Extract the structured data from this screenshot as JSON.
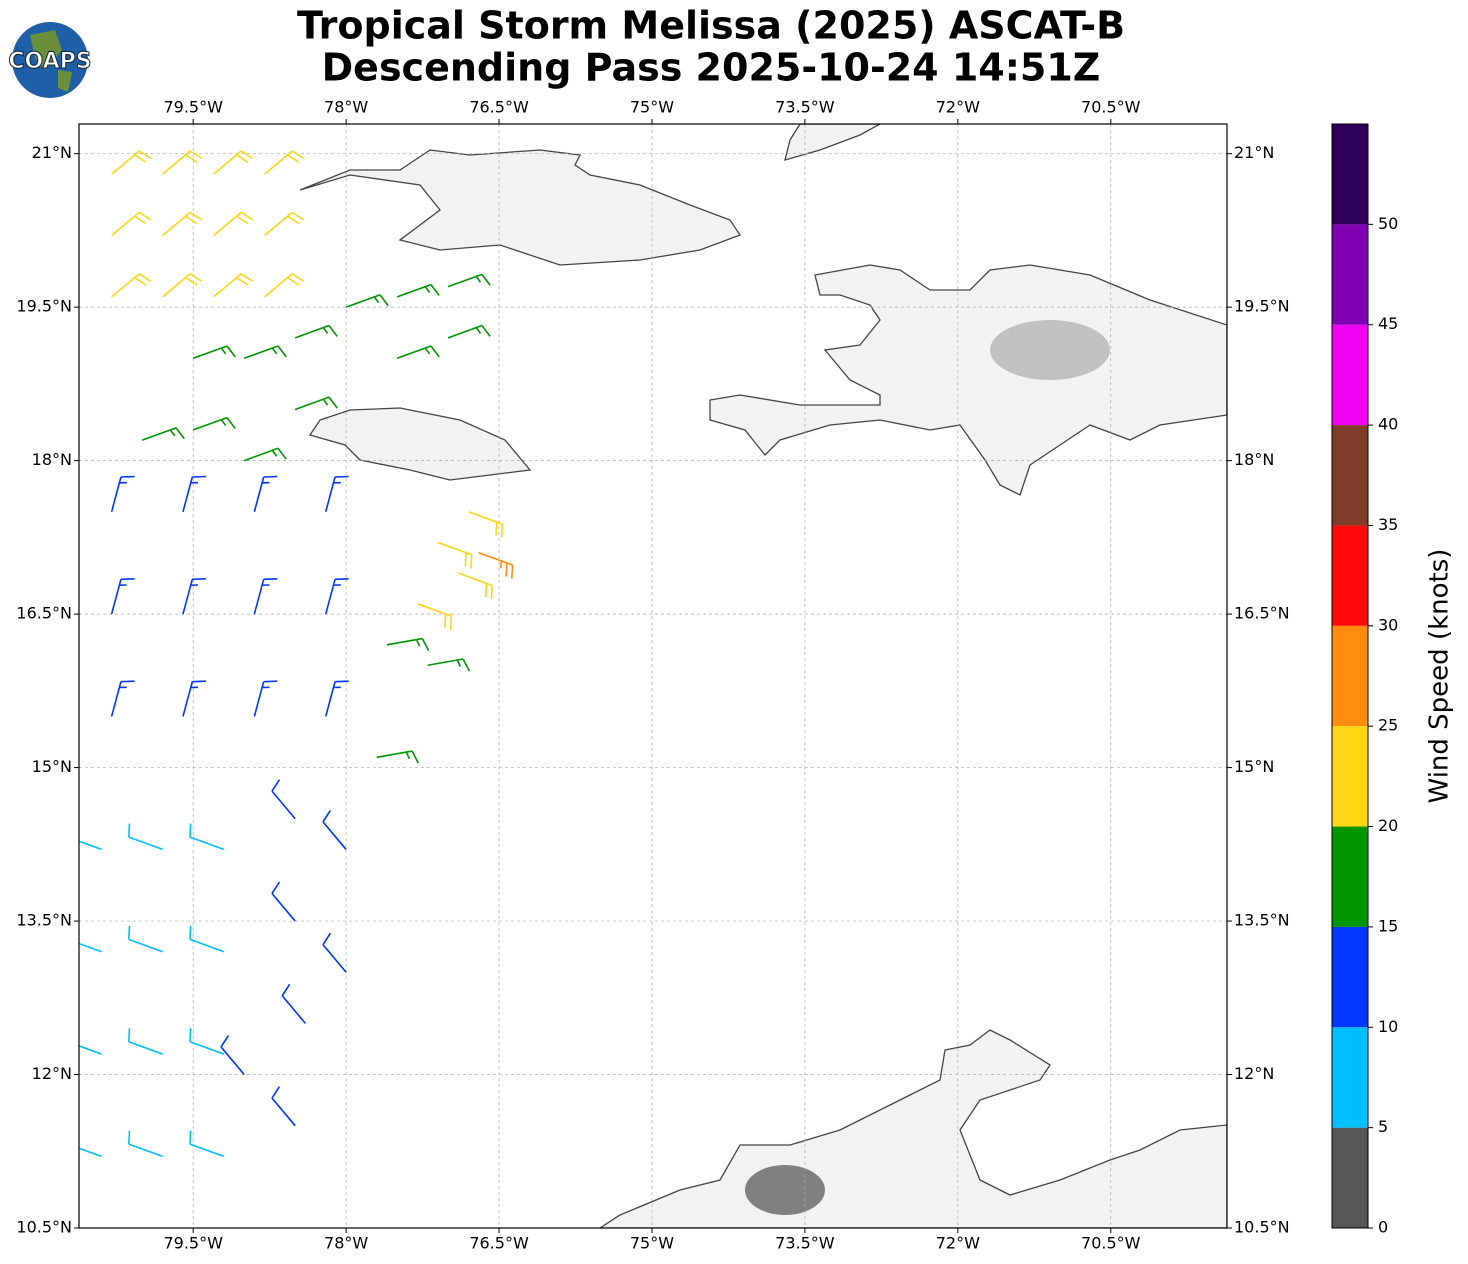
{
  "title": [
    "Tropical Storm Melissa (2025) ASCAT-B",
    "Descending Pass 2025-10-24 14:51Z"
  ],
  "logo": "COAPS",
  "map": {
    "lonlim": [
      -80.62,
      -69.36
    ],
    "latlim": [
      10.5,
      21.29
    ],
    "lonticks": [
      {
        "value": -79.5,
        "label": "79.5°W"
      },
      {
        "value": -78,
        "label": "78°W"
      },
      {
        "value": -76.5,
        "label": "76.5°W"
      },
      {
        "value": -75,
        "label": "75°W"
      },
      {
        "value": -73.5,
        "label": "73.5°W"
      },
      {
        "value": -72,
        "label": "72°W"
      },
      {
        "value": -70.5,
        "label": "70.5°W"
      }
    ],
    "latticks": [
      {
        "value": 21,
        "label": "21°N"
      },
      {
        "value": 19.5,
        "label": "19.5°N"
      },
      {
        "value": 18,
        "label": "18°N"
      },
      {
        "value": 16.5,
        "label": "16.5°N"
      },
      {
        "value": 15,
        "label": "15°N"
      },
      {
        "value": 13.5,
        "label": "13.5°N"
      },
      {
        "value": 12,
        "label": "12°N"
      },
      {
        "value": 10.5,
        "label": "10.5°N"
      }
    ],
    "grid": true,
    "barbs": [
      [
        -80.3,
        20.8,
        22,
        50
      ],
      [
        -79.8,
        20.8,
        22,
        50
      ],
      [
        -79.3,
        20.8,
        22,
        50
      ],
      [
        -78.8,
        20.8,
        22,
        50
      ],
      [
        -80.3,
        20.2,
        22,
        50
      ],
      [
        -79.8,
        20.2,
        22,
        50
      ],
      [
        -79.3,
        20.2,
        22,
        50
      ],
      [
        -78.8,
        20.2,
        22,
        50
      ],
      [
        -80.3,
        19.6,
        22,
        50
      ],
      [
        -79.8,
        19.6,
        22,
        50
      ],
      [
        -79.3,
        19.6,
        22,
        50
      ],
      [
        -78.8,
        19.6,
        22,
        50
      ],
      [
        -79.5,
        19.0,
        17,
        70
      ],
      [
        -79.0,
        19.0,
        17,
        70
      ],
      [
        -78.5,
        19.2,
        17,
        70
      ],
      [
        -78.0,
        19.5,
        17,
        70
      ],
      [
        -77.5,
        19.6,
        17,
        70
      ],
      [
        -77.0,
        19.7,
        17,
        70
      ],
      [
        -78.5,
        18.5,
        17,
        70
      ],
      [
        -80.0,
        18.2,
        17,
        70
      ],
      [
        -79.5,
        18.3,
        17,
        70
      ],
      [
        -79.0,
        18.0,
        17,
        70
      ],
      [
        -77.5,
        19.0,
        17,
        70
      ],
      [
        -77.0,
        19.2,
        17,
        70
      ],
      [
        -80.3,
        17.5,
        13,
        15
      ],
      [
        -79.6,
        17.5,
        13,
        15
      ],
      [
        -78.9,
        17.5,
        13,
        15
      ],
      [
        -78.2,
        17.5,
        13,
        15
      ],
      [
        -80.3,
        16.5,
        13,
        15
      ],
      [
        -79.6,
        16.5,
        13,
        15
      ],
      [
        -78.9,
        16.5,
        13,
        15
      ],
      [
        -78.2,
        16.5,
        13,
        15
      ],
      [
        -80.3,
        15.5,
        13,
        15
      ],
      [
        -79.6,
        15.5,
        13,
        15
      ],
      [
        -78.9,
        15.5,
        13,
        15
      ],
      [
        -78.2,
        15.5,
        13,
        15
      ],
      [
        -77.1,
        17.2,
        22,
        110
      ],
      [
        -76.8,
        17.5,
        22,
        110
      ],
      [
        -77.3,
        16.6,
        22,
        110
      ],
      [
        -76.9,
        16.9,
        22,
        110
      ],
      [
        -76.7,
        17.1,
        27,
        110
      ],
      [
        -77.6,
        16.2,
        17,
        80
      ],
      [
        -77.2,
        16.0,
        17,
        80
      ],
      [
        -77.7,
        15.1,
        17,
        80
      ],
      [
        -78.5,
        14.5,
        12,
        320
      ],
      [
        -78.0,
        14.2,
        12,
        320
      ],
      [
        -78.5,
        13.5,
        12,
        320
      ],
      [
        -78.0,
        13.0,
        12,
        320
      ],
      [
        -78.4,
        12.5,
        12,
        320
      ],
      [
        -78.5,
        11.5,
        12,
        320
      ],
      [
        -79.0,
        12.0,
        12,
        320
      ],
      [
        -80.4,
        14.2,
        8,
        290
      ],
      [
        -79.8,
        14.2,
        8,
        290
      ],
      [
        -79.2,
        14.2,
        8,
        290
      ],
      [
        -80.4,
        13.2,
        8,
        290
      ],
      [
        -79.8,
        13.2,
        8,
        290
      ],
      [
        -79.2,
        13.2,
        8,
        290
      ],
      [
        -80.4,
        12.2,
        8,
        290
      ],
      [
        -79.8,
        12.2,
        8,
        290
      ],
      [
        -79.2,
        12.2,
        8,
        290
      ],
      [
        -80.4,
        11.2,
        8,
        290
      ],
      [
        -79.8,
        11.2,
        8,
        290
      ],
      [
        -79.2,
        11.2,
        8,
        290
      ]
    ]
  },
  "colorbar": {
    "label": "Wind Speed (knots)",
    "lim": [
      0,
      55
    ],
    "ticks": [
      0,
      5,
      10,
      15,
      20,
      25,
      30,
      35,
      40,
      45,
      50
    ],
    "levels": [
      0,
      5,
      10,
      15,
      20,
      25,
      30,
      35,
      40,
      45,
      50,
      55
    ],
    "colors": [
      "#575757",
      "#00bfff",
      "#0036ff",
      "#009600",
      "#fed714",
      "#ff8c0d",
      "#ff0a0a",
      "#7f3c28",
      "#f000f0",
      "#8000b4",
      "#2e005b"
    ]
  }
}
